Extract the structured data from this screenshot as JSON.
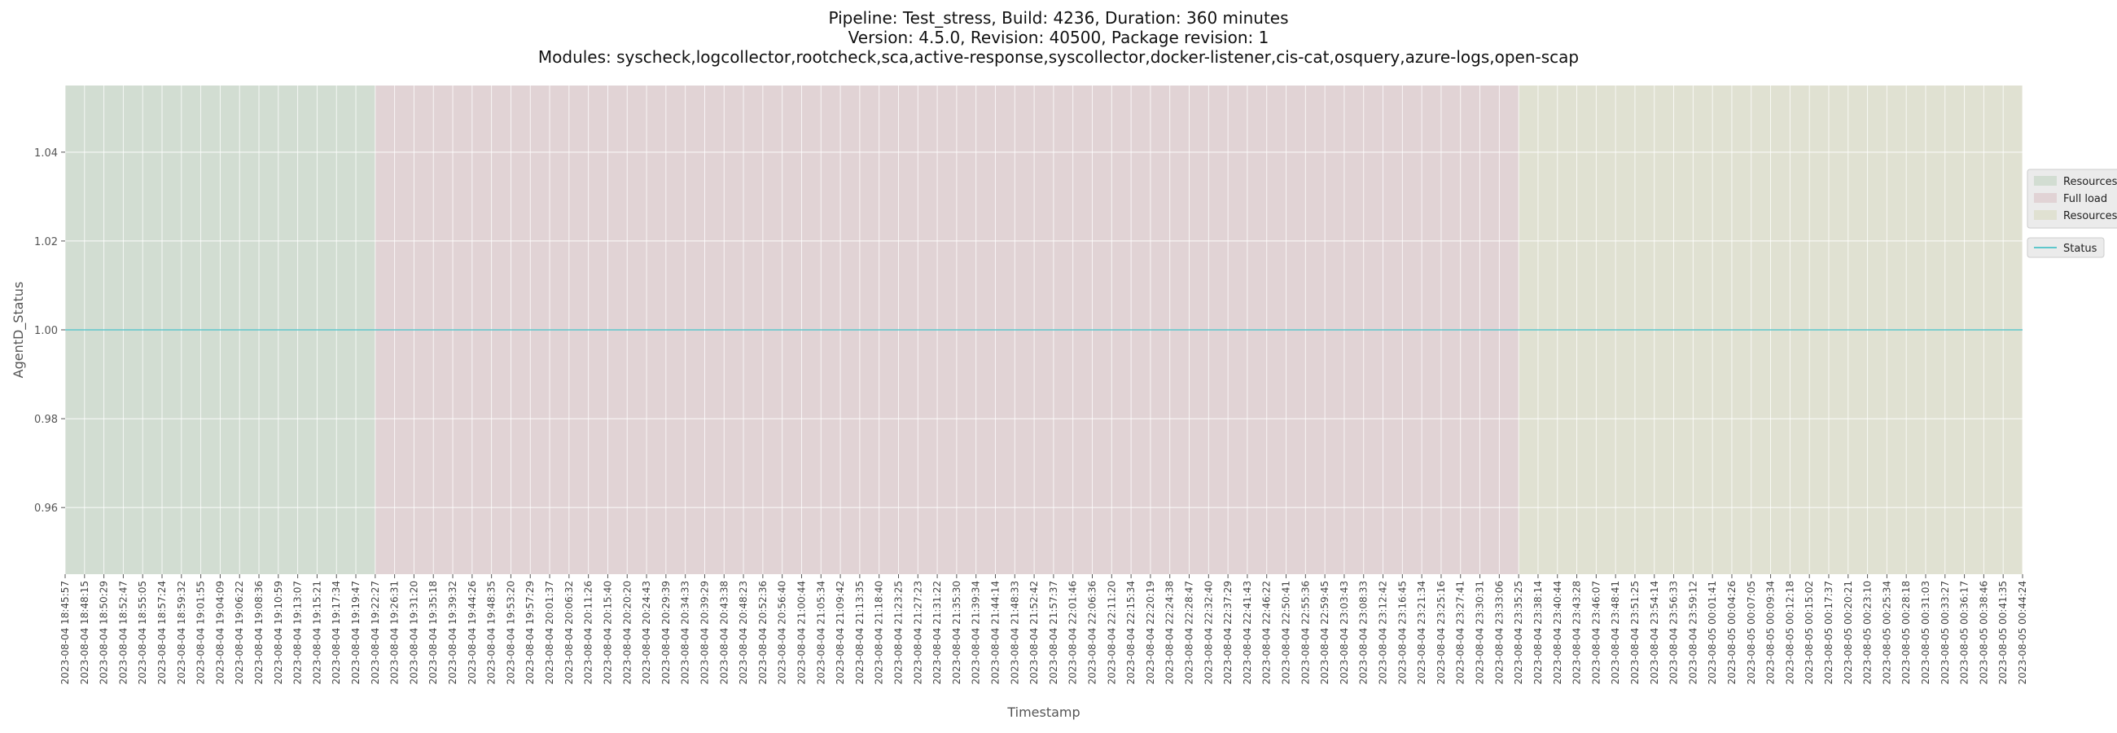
{
  "chart_data": {
    "type": "line",
    "title_lines": [
      "Pipeline: Test_stress, Build: 4236, Duration: 360 minutes",
      "Version: 4.5.0, Revision: 40500, Package revision: 1",
      "Modules: syscheck,logcollector,rootcheck,sca,active-response,syscollector,docker-listener,cis-cat,osquery,azure-logs,open-scap"
    ],
    "xlabel": "Timestamp",
    "ylabel": "AgentD_Status",
    "ylim": [
      0.945,
      1.055
    ],
    "yticks": [
      "0.96",
      "0.98",
      "1.00",
      "1.02",
      "1.04"
    ],
    "yticks_values": [
      0.96,
      0.98,
      1.0,
      1.02,
      1.04
    ],
    "grid": true,
    "legend_placement": "right",
    "x_tick_labels": [
      "2023-08-04 18:45:57",
      "2023-08-04 18:48:15",
      "2023-08-04 18:50:29",
      "2023-08-04 18:52:47",
      "2023-08-04 18:55:05",
      "2023-08-04 18:57:24",
      "2023-08-04 18:59:32",
      "2023-08-04 19:01:55",
      "2023-08-04 19:04:09",
      "2023-08-04 19:06:22",
      "2023-08-04 19:08:36",
      "2023-08-04 19:10:59",
      "2023-08-04 19:13:07",
      "2023-08-04 19:15:21",
      "2023-08-04 19:17:34",
      "2023-08-04 19:19:47",
      "2023-08-04 19:22:27",
      "2023-08-04 19:26:31",
      "2023-08-04 19:31:20",
      "2023-08-04 19:35:18",
      "2023-08-04 19:39:32",
      "2023-08-04 19:44:26",
      "2023-08-04 19:48:35",
      "2023-08-04 19:53:20",
      "2023-08-04 19:57:29",
      "2023-08-04 20:01:37",
      "2023-08-04 20:06:32",
      "2023-08-04 20:11:26",
      "2023-08-04 20:15:40",
      "2023-08-04 20:20:20",
      "2023-08-04 20:24:43",
      "2023-08-04 20:29:39",
      "2023-08-04 20:34:33",
      "2023-08-04 20:39:29",
      "2023-08-04 20:43:38",
      "2023-08-04 20:48:23",
      "2023-08-04 20:52:36",
      "2023-08-04 20:56:40",
      "2023-08-04 21:00:44",
      "2023-08-04 21:05:34",
      "2023-08-04 21:09:42",
      "2023-08-04 21:13:35",
      "2023-08-04 21:18:40",
      "2023-08-04 21:23:25",
      "2023-08-04 21:27:23",
      "2023-08-04 21:31:22",
      "2023-08-04 21:35:30",
      "2023-08-04 21:39:34",
      "2023-08-04 21:44:14",
      "2023-08-04 21:48:33",
      "2023-08-04 21:52:42",
      "2023-08-04 21:57:37",
      "2023-08-04 22:01:46",
      "2023-08-04 22:06:36",
      "2023-08-04 22:11:20",
      "2023-08-04 22:15:34",
      "2023-08-04 22:20:19",
      "2023-08-04 22:24:38",
      "2023-08-04 22:28:47",
      "2023-08-04 22:32:40",
      "2023-08-04 22:37:29",
      "2023-08-04 22:41:43",
      "2023-08-04 22:46:22",
      "2023-08-04 22:50:41",
      "2023-08-04 22:55:36",
      "2023-08-04 22:59:45",
      "2023-08-04 23:03:43",
      "2023-08-04 23:08:33",
      "2023-08-04 23:12:42",
      "2023-08-04 23:16:45",
      "2023-08-04 23:21:34",
      "2023-08-04 23:25:16",
      "2023-08-04 23:27:41",
      "2023-08-04 23:30:31",
      "2023-08-04 23:33:06",
      "2023-08-04 23:35:25",
      "2023-08-04 23:38:14",
      "2023-08-04 23:40:44",
      "2023-08-04 23:43:28",
      "2023-08-04 23:46:07",
      "2023-08-04 23:48:41",
      "2023-08-04 23:51:25",
      "2023-08-04 23:54:14",
      "2023-08-04 23:56:33",
      "2023-08-04 23:59:12",
      "2023-08-05 00:01:41",
      "2023-08-05 00:04:26",
      "2023-08-05 00:07:05",
      "2023-08-05 00:09:34",
      "2023-08-05 00:12:18",
      "2023-08-05 00:15:02",
      "2023-08-05 00:17:37",
      "2023-08-05 00:20:21",
      "2023-08-05 00:23:10",
      "2023-08-05 00:25:34",
      "2023-08-05 00:28:18",
      "2023-08-05 00:31:03",
      "2023-08-05 00:33:27",
      "2023-08-05 00:36:17",
      "2023-08-05 00:38:46",
      "2023-08-05 00:41:35",
      "2023-08-05 00:44:24"
    ],
    "phases": [
      {
        "name": "Resources",
        "start": "2023-08-04 18:45:57",
        "end": "2023-08-04 19:22:27",
        "color": "#d2ddd2"
      },
      {
        "name": "Full load",
        "start": "2023-08-04 19:22:27",
        "end": "2023-08-04 23:35:25",
        "color": "#e1d3d5"
      },
      {
        "name": "Resources",
        "start": "2023-08-04 23:35:25",
        "end": "2023-08-05 00:44:24",
        "color": "#e0e1d2"
      }
    ],
    "series": [
      {
        "name": "Status",
        "color": "#5fc7cc",
        "constant_value": 1.0
      }
    ],
    "legend_groups": [
      [
        "Resources",
        "Full load",
        "Resources"
      ],
      [
        "Status"
      ]
    ]
  }
}
